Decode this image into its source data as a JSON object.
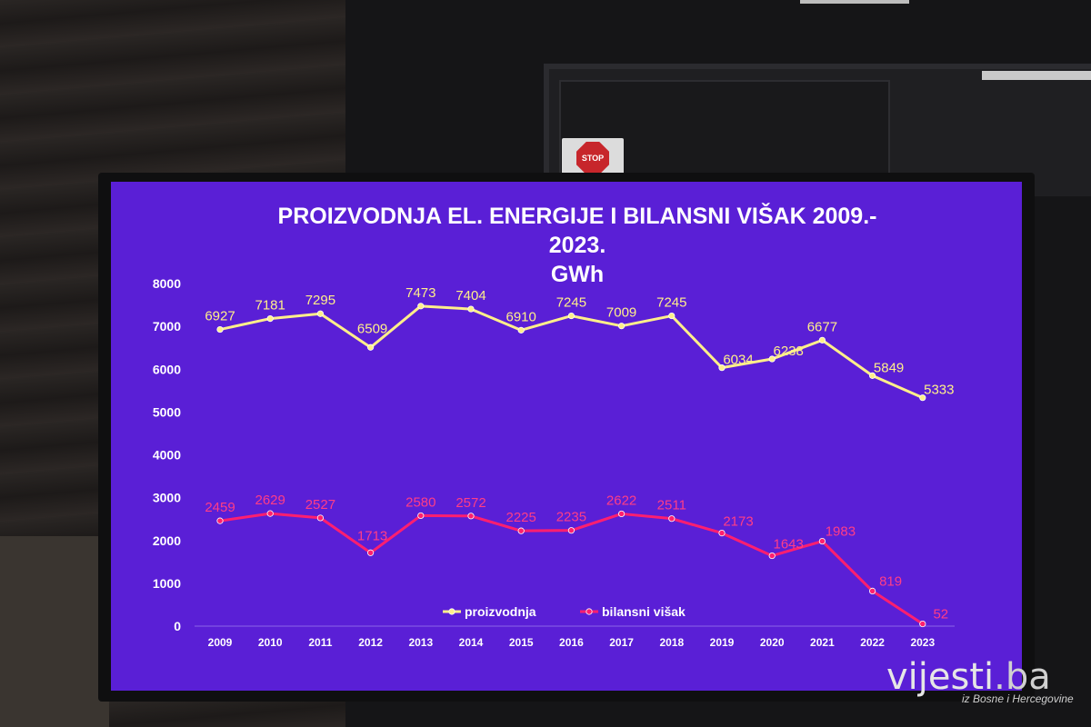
{
  "scene": {
    "stop_sign_text": "STOP",
    "watermark_brand": "vijesti",
    "watermark_tld": ".ba",
    "watermark_tagline": "iz Bosne i Hercegovine"
  },
  "chart_data": {
    "type": "line",
    "title_line1": "PROIZVODNJA EL. ENERGIJE I BILANSNI VIŠAK 2009.-",
    "title_line2": "2023.",
    "subtitle": "GWh",
    "xlabel": "",
    "ylabel": "",
    "ylim": [
      0,
      8000
    ],
    "yticks": [
      0,
      1000,
      2000,
      3000,
      4000,
      5000,
      6000,
      7000,
      8000
    ],
    "categories": [
      "2009",
      "2010",
      "2011",
      "2012",
      "2013",
      "2014",
      "2015",
      "2016",
      "2017",
      "2018",
      "2019",
      "2020",
      "2021",
      "2022",
      "2023"
    ],
    "grid": false,
    "legend_position": "bottom-center",
    "series": [
      {
        "name": "proizvodnja",
        "color": "#ffef8a",
        "label_color": "#ffef8a",
        "values": [
          6927,
          7181,
          7295,
          6509,
          7473,
          7404,
          6910,
          7245,
          7009,
          7245,
          6034,
          6238,
          6677,
          5849,
          5333
        ]
      },
      {
        "name": "bilansni višak",
        "color": "#ff1f6f",
        "label_color": "#ff3d86",
        "values": [
          2459,
          2629,
          2527,
          1713,
          2580,
          2572,
          2225,
          2235,
          2622,
          2511,
          2173,
          1643,
          1983,
          819,
          52
        ]
      }
    ]
  }
}
